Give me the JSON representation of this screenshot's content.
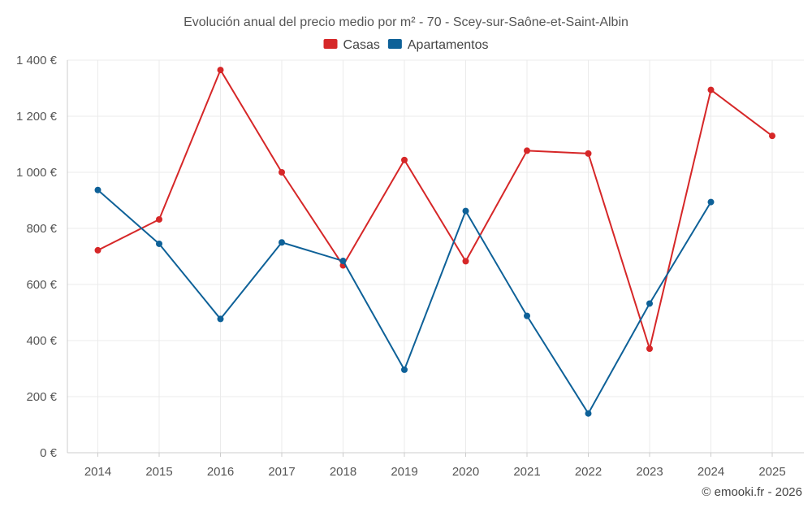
{
  "chart_data": {
    "type": "line",
    "title": "Evolución anual del precio medio por m² - 70 - Scey-sur-Saône-et-Saint-Albin",
    "categories": [
      "2014",
      "2015",
      "2016",
      "2017",
      "2018",
      "2019",
      "2020",
      "2021",
      "2022",
      "2023",
      "2024",
      "2025"
    ],
    "y_ticks": [
      0,
      200,
      400,
      600,
      800,
      1000,
      1200,
      1400
    ],
    "y_tick_labels": [
      "0 €",
      "200 €",
      "400 €",
      "600 €",
      "800 €",
      "1 000 €",
      "1 200 €",
      "1 400 €"
    ],
    "ylim": [
      0,
      1400
    ],
    "grid": true,
    "legend_position": "top-center",
    "series": [
      {
        "name": "Casas",
        "color": "#d62728",
        "values": [
          722,
          832,
          1365,
          1000,
          668,
          1044,
          683,
          1077,
          1067,
          371,
          1294,
          1130
        ]
      },
      {
        "name": "Apartamentos",
        "color": "#0e6198",
        "values": [
          937,
          745,
          477,
          750,
          684,
          296,
          862,
          488,
          140,
          532,
          894,
          null
        ]
      }
    ]
  },
  "credit": "© emooki.fr - 2026"
}
